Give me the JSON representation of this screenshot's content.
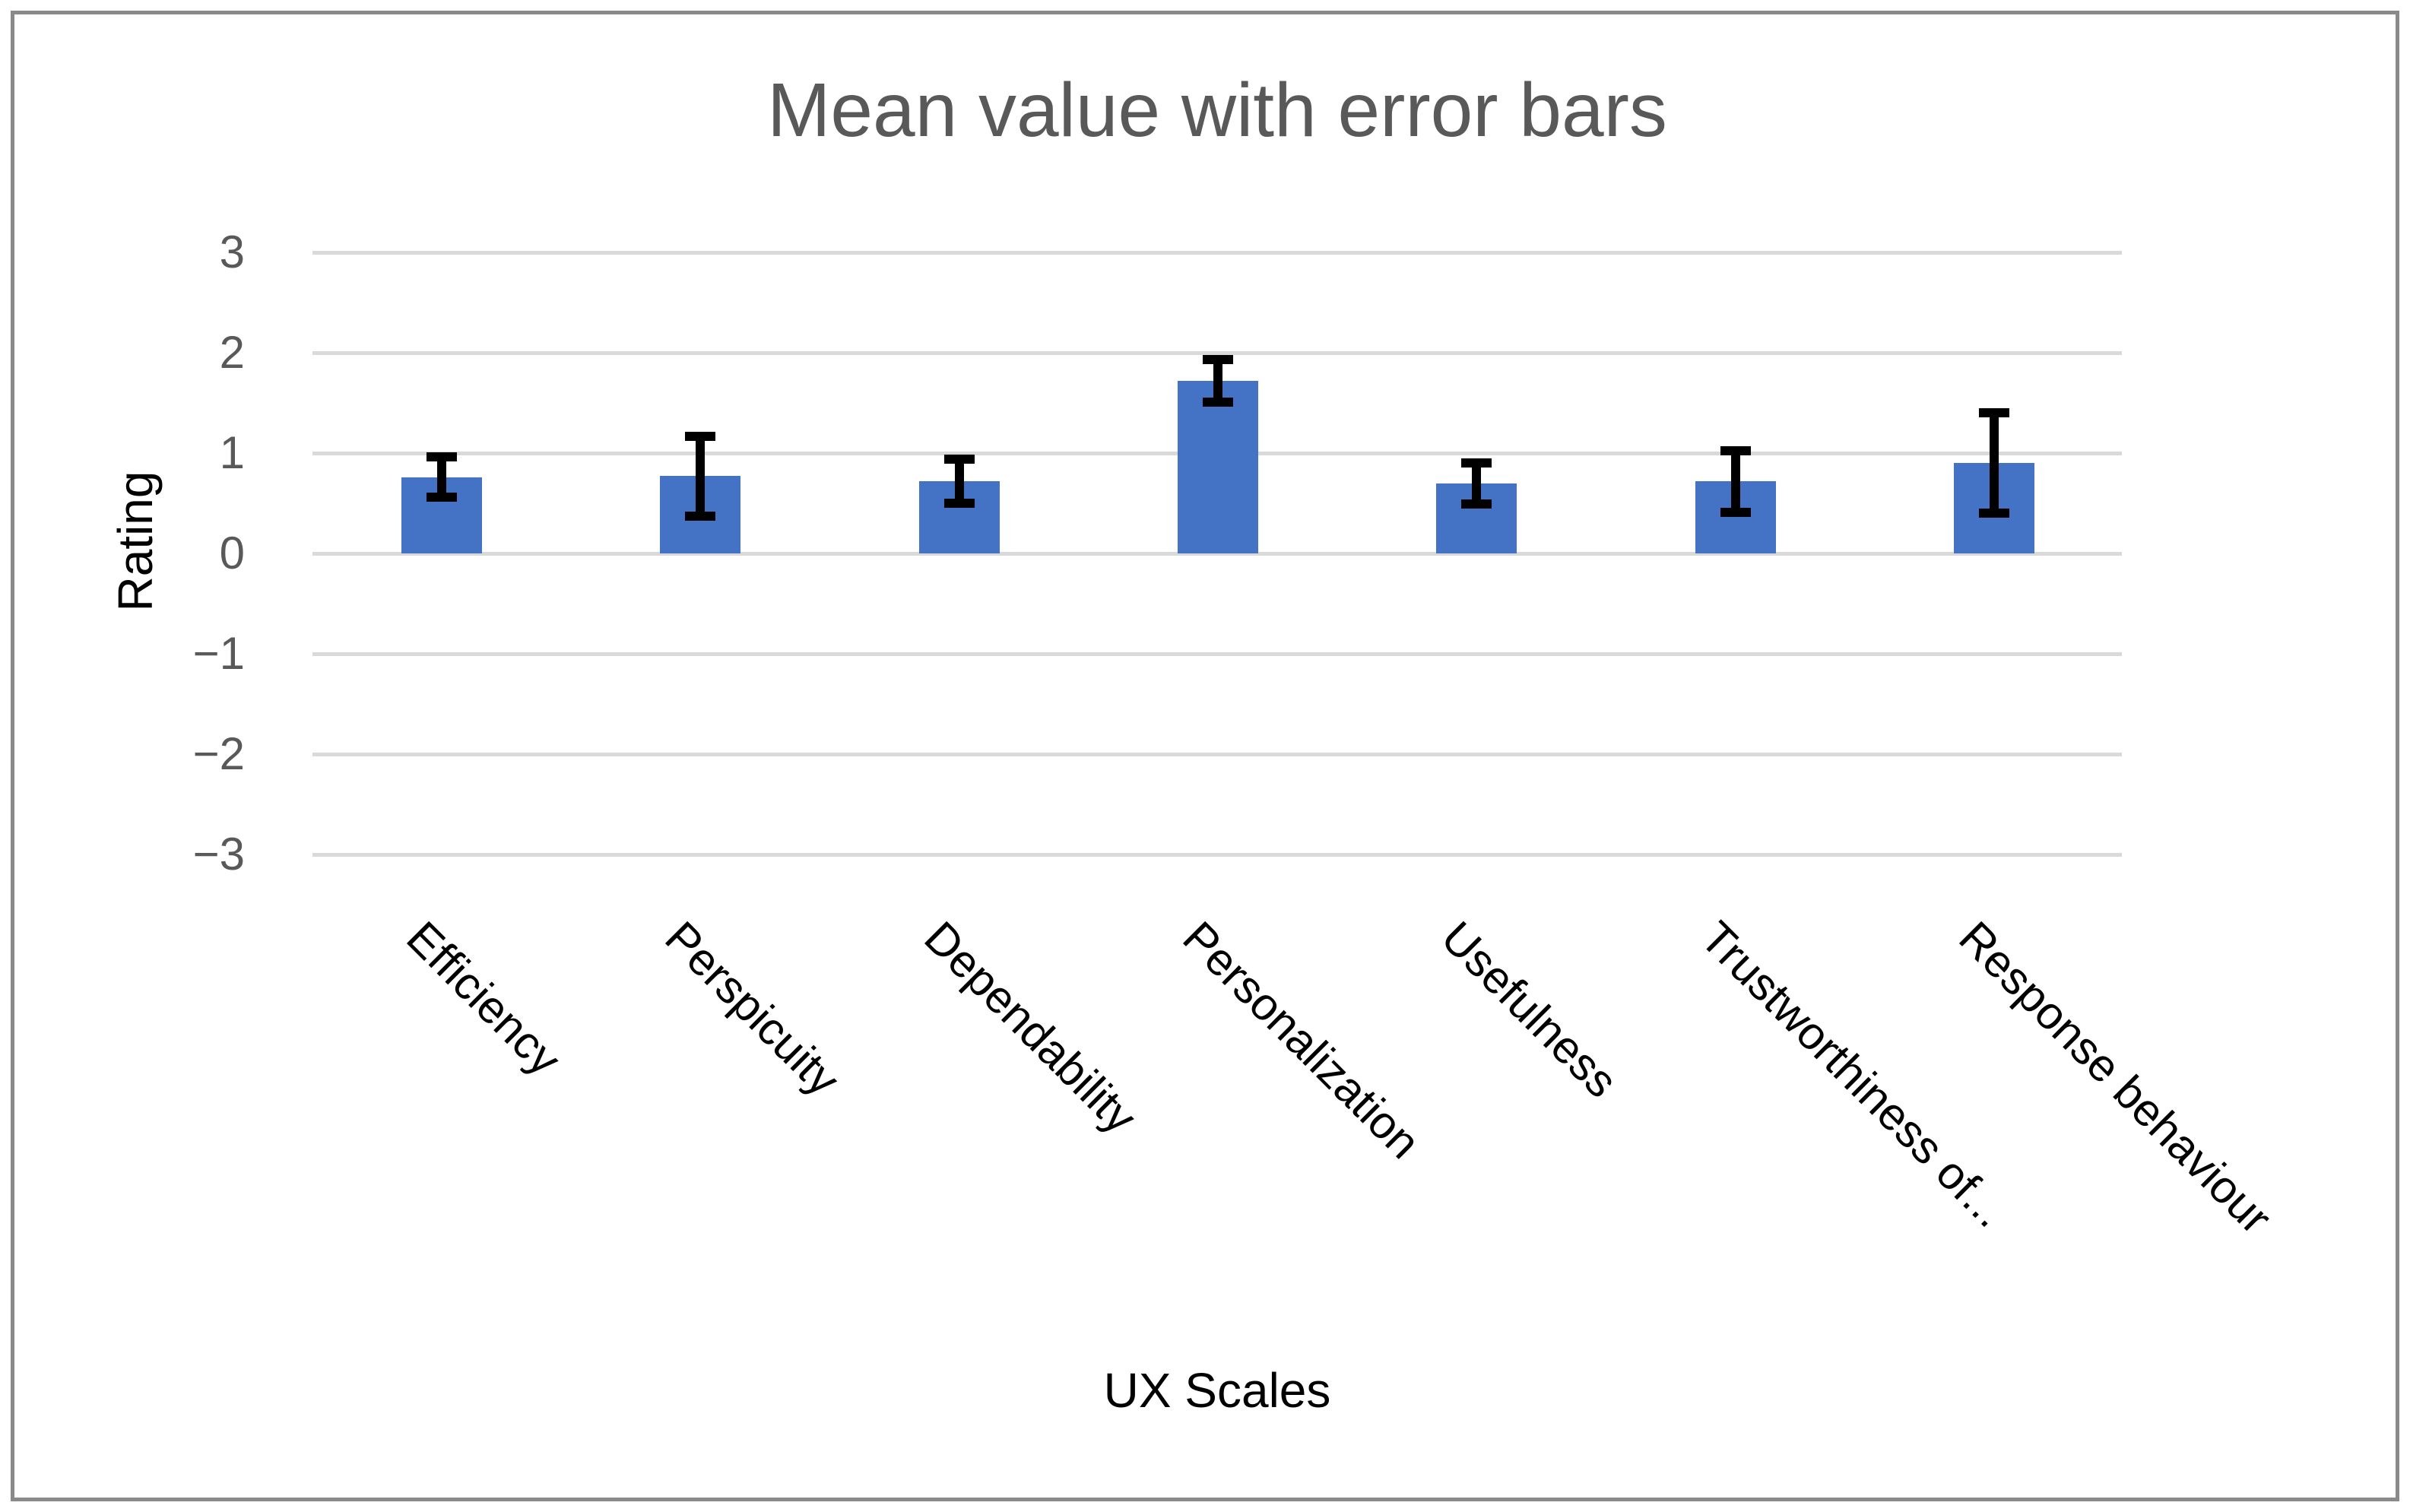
{
  "title": "Mean value with error bars",
  "colors": {
    "bar": "#4472C4",
    "error_bar": "#000000",
    "gridline": "#D9D9D9",
    "tick_label": "#595959",
    "title": "#595959",
    "axis_title": "#000000",
    "frame_border": "#8A8A8A",
    "background": "#FFFFFF"
  },
  "y_axis": {
    "title": "Rating",
    "tick_labels": [
      "3",
      "2",
      "1",
      "0",
      "−1",
      "−2",
      "−3"
    ]
  },
  "x_axis": {
    "title": "UX Scales"
  },
  "chart_data": {
    "type": "bar",
    "title": "Mean value with error bars",
    "xlabel": "UX Scales",
    "ylabel": "Rating",
    "categories": [
      "Efficiency",
      "Perspicuity",
      "Dependability",
      "Personalization",
      "Usefulness",
      "Trustworthiness of...",
      "Response behaviour"
    ],
    "series": [
      {
        "name": "Mean",
        "values": [
          0.76,
          0.77,
          0.72,
          1.72,
          0.7,
          0.72,
          0.9
        ]
      }
    ],
    "error_bars": {
      "low": [
        0.56,
        0.37,
        0.5,
        1.51,
        0.49,
        0.41,
        0.4
      ],
      "high": [
        0.96,
        1.17,
        0.94,
        1.93,
        0.9,
        1.02,
        1.4
      ]
    },
    "ylim": [
      -3,
      3
    ],
    "ytick_values": [
      3,
      2,
      1,
      0,
      -1,
      -2,
      -3
    ],
    "ytick_labels": [
      "3",
      "2",
      "1",
      "0",
      "−1",
      "−2",
      "−3"
    ],
    "grid": true,
    "legend": false,
    "bar_color": "#4472C4",
    "error_bar_color": "#000000",
    "category_label_rotation_deg": 45
  }
}
